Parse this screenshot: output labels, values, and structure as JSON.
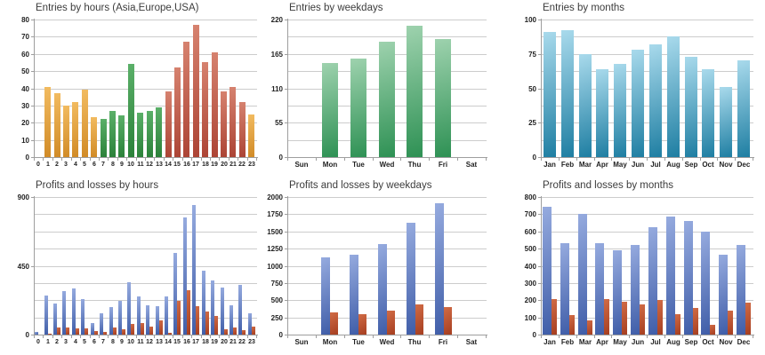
{
  "palette": {
    "asia_orange": [
      "#F2BB60",
      "#D18B27"
    ],
    "europe_green": [
      "#5BB069",
      "#2B8139"
    ],
    "usa_red": [
      "#D6826F",
      "#AC4435"
    ],
    "weekday_green": [
      "#9ED2AE",
      "#2E9154"
    ],
    "month_teal": [
      "#A9DAEC",
      "#1E7EA2"
    ],
    "profit_blue": [
      "#96ABDF",
      "#3F5DA8"
    ],
    "loss_red": [
      "#D06B45",
      "#A63E20"
    ],
    "gridline": "#cccccc",
    "axis": "#9e9e9e",
    "title_text": "#3c3c3c",
    "tick_text": "#222222"
  },
  "chart_data": [
    {
      "type": "bar",
      "title": "Entries by hours (Asia,Europe,USA)",
      "categories": [
        "0",
        "1",
        "2",
        "3",
        "4",
        "5",
        "6",
        "7",
        "8",
        "9",
        "10",
        "11",
        "12",
        "13",
        "14",
        "15",
        "16",
        "17",
        "18",
        "19",
        "20",
        "21",
        "22",
        "23"
      ],
      "ylim": [
        0,
        80
      ],
      "grid_divisions": 8,
      "label_every": 1,
      "grid": true,
      "legend": "none",
      "series": [
        {
          "name": "entries",
          "values": [
            0,
            41,
            37,
            30,
            32,
            39,
            23,
            22,
            27,
            24,
            54,
            26,
            27,
            29,
            38,
            52,
            67,
            77,
            55,
            61,
            38,
            41,
            32,
            25
          ],
          "colors_by_bar": [
            "asia_orange",
            "asia_orange",
            "asia_orange",
            "asia_orange",
            "asia_orange",
            "asia_orange",
            "asia_orange",
            "europe_green",
            "europe_green",
            "europe_green",
            "europe_green",
            "europe_green",
            "europe_green",
            "europe_green",
            "usa_red",
            "usa_red",
            "usa_red",
            "usa_red",
            "usa_red",
            "usa_red",
            "usa_red",
            "usa_red",
            "usa_red",
            "asia_orange"
          ]
        }
      ]
    },
    {
      "type": "bar",
      "title": "Entries by weekdays",
      "categories": [
        "Sun",
        "Mon",
        "Tue",
        "Wed",
        "Thu",
        "Fri",
        "Sat"
      ],
      "ylim": [
        0,
        220
      ],
      "grid_divisions": 8,
      "label_every": 2,
      "grid": true,
      "legend": "none",
      "series": [
        {
          "name": "entries",
          "values": [
            0,
            151,
            158,
            185,
            210,
            189,
            0
          ],
          "color": "weekday_green"
        }
      ]
    },
    {
      "type": "bar",
      "title": "Entries by months",
      "categories": [
        "Jan",
        "Feb",
        "Mar",
        "Apr",
        "May",
        "Jun",
        "Jul",
        "Aug",
        "Sep",
        "Oct",
        "Nov",
        "Dec"
      ],
      "ylim": [
        0,
        100
      ],
      "grid_divisions": 8,
      "label_every": 2,
      "grid": true,
      "legend": "none",
      "series": [
        {
          "name": "entries",
          "values": [
            91,
            92,
            75,
            64,
            68,
            78,
            82,
            88,
            73,
            64,
            51,
            70
          ],
          "color": "month_teal"
        }
      ]
    },
    {
      "type": "bar",
      "title": "Profits and losses by hours",
      "categories": [
        "0",
        "1",
        "2",
        "3",
        "4",
        "5",
        "6",
        "7",
        "8",
        "9",
        "10",
        "11",
        "12",
        "13",
        "14",
        "15",
        "16",
        "17",
        "18",
        "19",
        "20",
        "21",
        "22",
        "23"
      ],
      "ylim": [
        0,
        900
      ],
      "grid_divisions": 8,
      "label_every": 4,
      "grid": true,
      "legend": "none",
      "series": [
        {
          "name": "profits",
          "values": [
            20,
            253,
            205,
            282,
            302,
            234,
            78,
            140,
            181,
            220,
            340,
            247,
            189,
            187,
            247,
            533,
            769,
            850,
            420,
            354,
            309,
            193,
            325,
            140
          ],
          "color": "profit_blue"
        },
        {
          "name": "losses",
          "values": [
            0,
            6,
            45,
            49,
            43,
            43,
            23,
            16,
            47,
            33,
            68,
            78,
            51,
            93,
            10,
            220,
            292,
            185,
            152,
            121,
            35,
            47,
            29,
            53
          ],
          "color": "loss_red"
        }
      ]
    },
    {
      "type": "bar",
      "title": "Profits and losses by weekdays",
      "categories": [
        "Sun",
        "Mon",
        "Tue",
        "Wed",
        "Thu",
        "Fri",
        "Sat"
      ],
      "ylim": [
        0,
        2000
      ],
      "grid_divisions": 8,
      "label_every": 1,
      "grid": true,
      "legend": "none",
      "series": [
        {
          "name": "profits",
          "values": [
            0,
            1120,
            1163,
            1312,
            1620,
            1905,
            0
          ],
          "color": "profit_blue"
        },
        {
          "name": "losses",
          "values": [
            0,
            318,
            303,
            352,
            443,
            395,
            0
          ],
          "color": "loss_red"
        }
      ]
    },
    {
      "type": "bar",
      "title": "Profits and losses by months",
      "categories": [
        "Jan",
        "Feb",
        "Mar",
        "Apr",
        "May",
        "Jun",
        "Jul",
        "Aug",
        "Sep",
        "Oct",
        "Nov",
        "Dec"
      ],
      "ylim": [
        0,
        800
      ],
      "grid_divisions": 8,
      "label_every": 1,
      "grid": true,
      "legend": "none",
      "series": [
        {
          "name": "profits",
          "values": [
            745,
            530,
            700,
            530,
            488,
            520,
            625,
            685,
            660,
            597,
            467,
            520
          ],
          "color": "profit_blue"
        },
        {
          "name": "losses",
          "values": [
            205,
            113,
            82,
            207,
            193,
            176,
            203,
            117,
            153,
            57,
            138,
            184
          ],
          "color": "loss_red"
        }
      ]
    }
  ]
}
